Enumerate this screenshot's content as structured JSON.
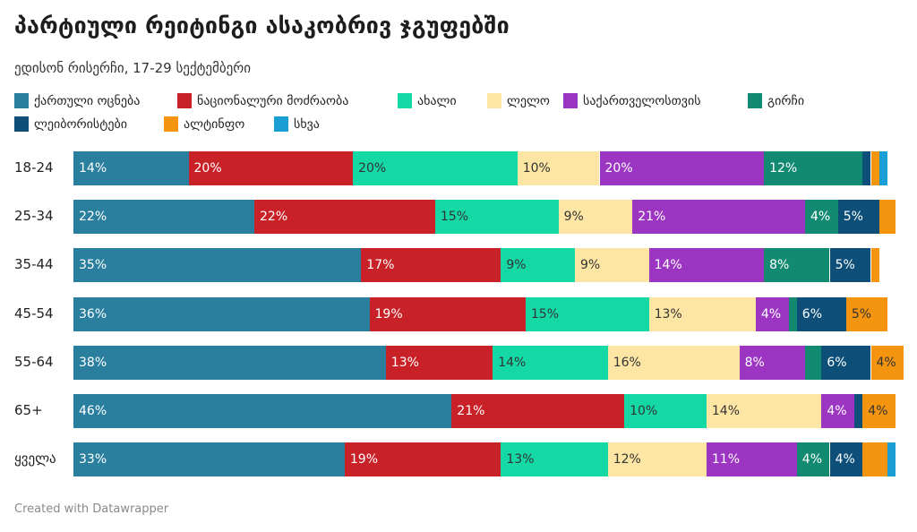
{
  "title": "პარტიული რეიტინგი ასაკობრივ ჯგუფებში",
  "subtitle": "ედისონ რისერჩი, 17-29 სექტემბერი",
  "footer": "Created with Datawrapper",
  "chart_data": {
    "type": "bar",
    "stacked": true,
    "orientation": "horizontal",
    "title": "პარტიული რეიტინგი ასაკობრივ ჯგუფებში",
    "subtitle": "ედისონ რისერჩი, 17-29 სექტემბერი",
    "legend_position": "top",
    "xlim": [
      0,
      100
    ],
    "categories": [
      "18-24",
      "25-34",
      "35-44",
      "45-54",
      "55-64",
      "65+",
      "ყველა"
    ],
    "series": [
      {
        "name": "ქართული ოცნება",
        "color": "#2a7f9e",
        "values": [
          14,
          22,
          35,
          36,
          38,
          46,
          33
        ],
        "labels": [
          "14%",
          "22%",
          "35%",
          "36%",
          "38%",
          "46%",
          "33%"
        ]
      },
      {
        "name": "ნაციონალური მოძრაობა",
        "color": "#c82127",
        "values": [
          20,
          22,
          17,
          19,
          13,
          21,
          19
        ],
        "labels": [
          "20%",
          "22%",
          "17%",
          "19%",
          "13%",
          "21%",
          "19%"
        ]
      },
      {
        "name": "ახალი",
        "color": "#14d9a5",
        "values": [
          20,
          15,
          9,
          15,
          14,
          10,
          13
        ],
        "labels": [
          "20%",
          "15%",
          "9%",
          "15%",
          "14%",
          "10%",
          "13%"
        ]
      },
      {
        "name": "ლელო",
        "color": "#fde5a3",
        "values": [
          10,
          9,
          9,
          13,
          16,
          14,
          12
        ],
        "labels": [
          "10%",
          "9%",
          "9%",
          "13%",
          "16%",
          "14%",
          "12%"
        ]
      },
      {
        "name": "საქართველოსთვის",
        "color": "#9b35c2",
        "values": [
          20,
          21,
          14,
          4,
          8,
          4,
          11
        ],
        "labels": [
          "20%",
          "21%",
          "14%",
          "4%",
          "8%",
          "4%",
          "11%"
        ]
      },
      {
        "name": "გირჩი",
        "color": "#128a71",
        "values": [
          12,
          4,
          8,
          1,
          2,
          0,
          4
        ],
        "labels": [
          "12%",
          "4%",
          "8%",
          "",
          "",
          "",
          "4%"
        ]
      },
      {
        "name": "ლეიბორისტები",
        "color": "#0d4f78",
        "values": [
          1,
          5,
          5,
          6,
          6,
          1,
          4
        ],
        "labels": [
          "",
          "5%",
          "5%",
          "6%",
          "6%",
          "",
          "4%"
        ]
      },
      {
        "name": "ალტინფო",
        "color": "#f5950f",
        "values": [
          1,
          2,
          1,
          5,
          4,
          4,
          3
        ],
        "labels": [
          "",
          "",
          "",
          "5%",
          "4%",
          "4%",
          ""
        ]
      },
      {
        "name": "სხვა",
        "color": "#1b9ed3",
        "values": [
          1,
          0,
          0,
          0,
          0,
          0,
          1
        ],
        "labels": [
          "",
          "",
          "",
          "",
          "",
          "",
          ""
        ]
      }
    ]
  }
}
